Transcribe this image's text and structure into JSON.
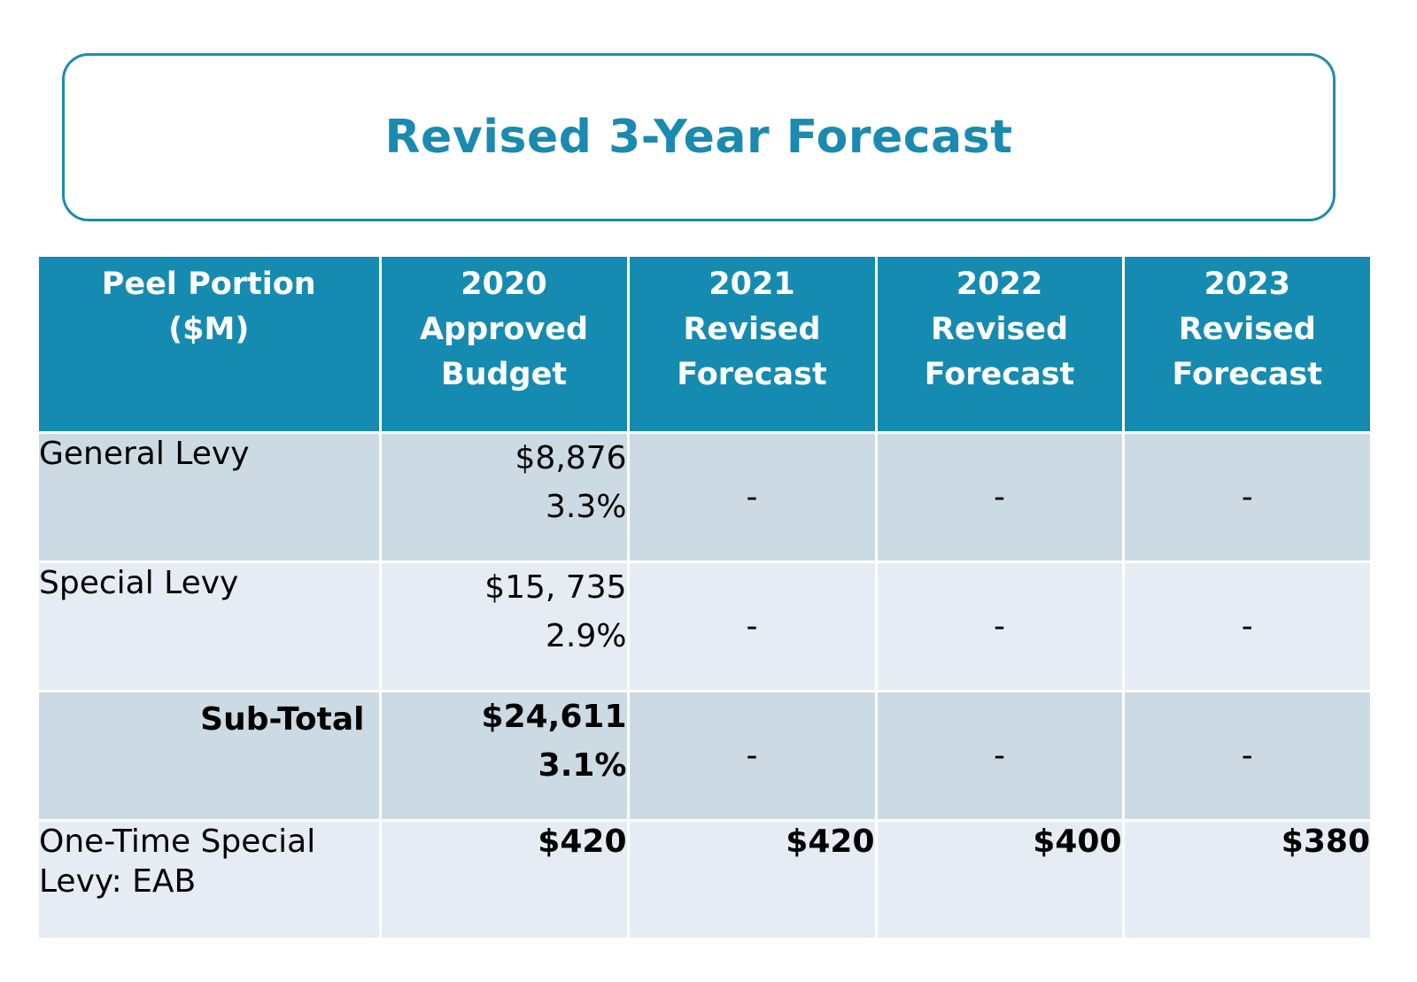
{
  "title": "Revised 3-Year Forecast",
  "table": {
    "headers": [
      [
        "Peel Portion",
        "($M)"
      ],
      [
        "2020",
        "Approved",
        "Budget"
      ],
      [
        "2021",
        "Revised",
        "Forecast"
      ],
      [
        "2022",
        "Revised",
        "Forecast"
      ],
      [
        "2023",
        "Revised",
        "Forecast"
      ]
    ],
    "rows": [
      {
        "label": "General Levy",
        "budget_amount": "$8,876",
        "budget_pct": "3.3%",
        "forecasts": [
          "-",
          "-",
          "-"
        ]
      },
      {
        "label": "Special Levy",
        "budget_amount": "$15, 735",
        "budget_pct": "2.9%",
        "forecasts": [
          "-",
          "-",
          "-"
        ]
      },
      {
        "label": "Sub-Total",
        "budget_amount": "$24,611",
        "budget_pct": "3.1%",
        "forecasts": [
          "-",
          "-",
          "-"
        ]
      }
    ],
    "one_time": {
      "label_line1": "One-Time Special",
      "label_line2": "Levy: EAB",
      "values": [
        "$420",
        "$420",
        "$400",
        "$380"
      ]
    }
  },
  "colors": {
    "accent": "#168bb2",
    "row_dark": "#ccdbe3",
    "row_light": "#e6ecf3"
  }
}
